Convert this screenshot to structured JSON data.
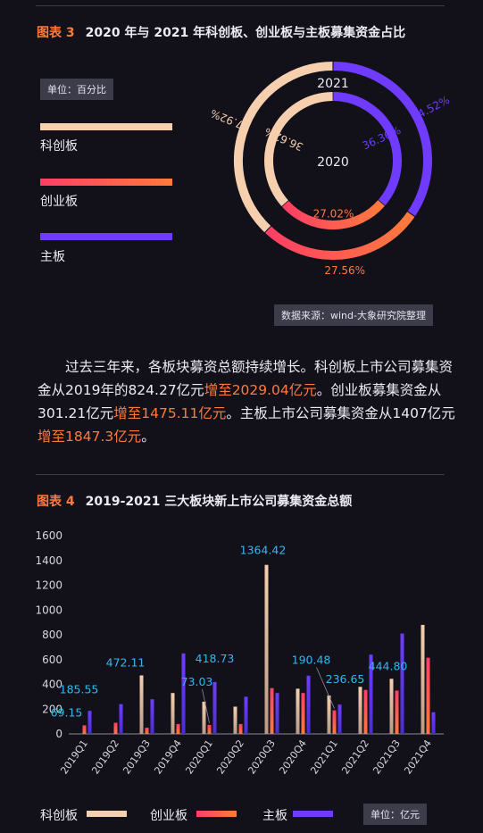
{
  "colors": {
    "star": "#f5cfae",
    "chinext": "#ff3f65",
    "chinext_end": "#ff7a3c",
    "main": "#6f3cff",
    "accent_text": "#ff7a3c",
    "label_blue": "#35b6ef"
  },
  "fig3": {
    "num": "图表 3",
    "title": "2020 年与 2021 年科创板、创业板与主板募集资金占比",
    "unit": "单位：百分比",
    "legend": [
      "科创板",
      "创业板",
      "主板"
    ],
    "source": "数据来源：wind-大象研究院整理"
  },
  "paragraph": {
    "s1": "过去三年来，各板块募资总额持续增长。科创板上市公司募集资金从2019年的824.27亿元",
    "h1": "增至2029.04亿元",
    "s2": "。创业板募集资金从301.21亿元",
    "h2": "增至1475.11亿元",
    "s3": "。主板上市公司募集资金从1407亿元",
    "h3": "增至1847.3亿元",
    "s4": "。"
  },
  "fig4": {
    "num": "图表 4",
    "title": "2019-2021 三大板块新上市公司募集资金总额",
    "unit": "单位：亿元",
    "legend": [
      "科创板",
      "创业板",
      "主板"
    ]
  },
  "chart_data": [
    {
      "type": "pie",
      "variant": "concentric-donut",
      "rings": [
        {
          "label": "2021",
          "series": [
            "科创板",
            "主板",
            "创业板"
          ],
          "values": [
            37.92,
            34.52,
            27.56
          ],
          "value_labels": [
            "37.92%",
            "34.52%",
            "27.56%"
          ]
        },
        {
          "label": "2020",
          "series": [
            "科创板",
            "主板",
            "创业板"
          ],
          "values": [
            36.62,
            36.36,
            27.02
          ],
          "value_labels": [
            "36.62%",
            "36.36%",
            "27.02%"
          ]
        }
      ],
      "legend": [
        "科创板",
        "创业板",
        "主板"
      ],
      "legend_position": "left"
    },
    {
      "type": "bar",
      "categories": [
        "2019Q1",
        "2019Q2",
        "2019Q3",
        "2019Q4",
        "2020Q1",
        "2020Q2",
        "2020Q3",
        "2020Q4",
        "2021Q1",
        "2021Q2",
        "2021Q3",
        "2021Q4"
      ],
      "series": [
        {
          "name": "科创板",
          "values": [
            0,
            0,
            472.11,
            330,
            260,
            220,
            1364.42,
            365,
            310,
            380,
            444.8,
            880
          ]
        },
        {
          "name": "创业板",
          "values": [
            69.15,
            90,
            50,
            80,
            73.03,
            80,
            370,
            330,
            190.48,
            355,
            350,
            615
          ]
        },
        {
          "name": "主板",
          "values": [
            185.55,
            240,
            280,
            650,
            418.73,
            300,
            330,
            470,
            236.65,
            640,
            810,
            175
          ]
        }
      ],
      "data_labels": [
        {
          "category": "2019Q1",
          "series": "创业板",
          "text": "69.15"
        },
        {
          "category": "2019Q1",
          "series": "主板",
          "text": "185.55"
        },
        {
          "category": "2019Q3",
          "series": "科创板",
          "text": "472.11"
        },
        {
          "category": "2020Q1",
          "series": "创业板",
          "text": "73.03"
        },
        {
          "category": "2020Q1",
          "series": "主板",
          "text": "418.73"
        },
        {
          "category": "2020Q3",
          "series": "科创板",
          "text": "1364.42"
        },
        {
          "category": "2021Q1",
          "series": "创业板",
          "text": "190.48"
        },
        {
          "category": "2021Q1",
          "series": "主板",
          "text": "236.65"
        },
        {
          "category": "2021Q3",
          "series": "科创板",
          "text": "444.80"
        }
      ],
      "yticks": [
        "0",
        "200",
        "400",
        "600",
        "800",
        "1000",
        "1200",
        "1400",
        "1600"
      ],
      "ylim": [
        0,
        1600
      ],
      "grid": false,
      "legend_position": "bottom"
    }
  ]
}
